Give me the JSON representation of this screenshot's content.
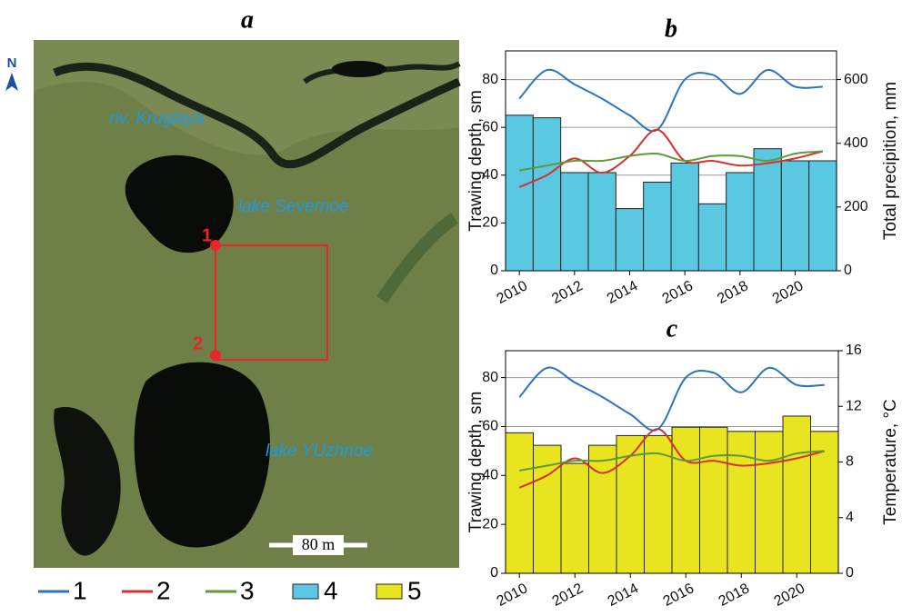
{
  "panel_a": {
    "title": "a",
    "north": "N",
    "labels": [
      "riv. Kruglaya",
      "lake Severnoe",
      "lake YUzhnoe"
    ],
    "points": [
      "1",
      "2"
    ],
    "scale": "80 m"
  },
  "chart_data": [
    {
      "type": "combo",
      "title": "b",
      "ylabel": "Trawing depth, sm",
      "y2label": "Total precipition, mm",
      "x": [
        2010,
        2011,
        2012,
        2013,
        2014,
        2015,
        2016,
        2017,
        2018,
        2019,
        2020,
        2021
      ],
      "xlim": [
        2009.5,
        2021.5
      ],
      "xticks": [
        2010,
        2012,
        2014,
        2016,
        2018,
        2020
      ],
      "ylim": [
        0,
        92
      ],
      "yticks": [
        0,
        20,
        40,
        60,
        80
      ],
      "y2lim": [
        0,
        690
      ],
      "y2ticks": [
        0,
        200,
        400,
        600
      ],
      "grid": true,
      "series": [
        {
          "name": "1",
          "kind": "line",
          "color": "#2b73c0",
          "values": [
            72,
            84,
            78,
            72,
            65,
            59,
            80,
            82,
            74,
            84,
            77,
            77
          ]
        },
        {
          "name": "2",
          "kind": "line",
          "color": "#d6312b",
          "values": [
            35,
            40,
            47,
            41,
            48,
            59,
            46,
            46,
            44,
            45,
            47,
            50
          ]
        },
        {
          "name": "3",
          "kind": "line",
          "color": "#5e9a3a",
          "values": [
            42,
            44,
            46,
            46,
            48,
            49,
            46,
            48,
            48,
            46,
            49,
            50
          ]
        },
        {
          "name": "4",
          "kind": "bar",
          "axis": "y2",
          "color": "#5bc8e2",
          "values": [
            488,
            480,
            308,
            308,
            195,
            278,
            338,
            210,
            308,
            383,
            345,
            345
          ]
        }
      ]
    },
    {
      "type": "combo",
      "title": "c",
      "ylabel": "Trawing depth, sm",
      "y2label": "Temperature, °C",
      "x": [
        2010,
        2011,
        2012,
        2013,
        2014,
        2015,
        2016,
        2017,
        2018,
        2019,
        2020,
        2021
      ],
      "xlim": [
        2009.5,
        2021.5
      ],
      "xticks": [
        2010,
        2012,
        2014,
        2016,
        2018,
        2020
      ],
      "ylim": [
        0,
        91
      ],
      "yticks": [
        0,
        20,
        40,
        60,
        80
      ],
      "y2lim": [
        0,
        16
      ],
      "y2ticks": [
        0,
        4,
        8,
        12,
        16
      ],
      "grid": true,
      "series": [
        {
          "kind": "line",
          "color": "#2b73c0",
          "values": [
            72,
            84,
            78,
            72,
            65,
            59,
            80,
            82,
            74,
            84,
            77,
            77
          ]
        },
        {
          "kind": "line",
          "color": "#d6312b",
          "values": [
            35,
            40,
            47,
            41,
            48,
            59,
            46,
            46,
            44,
            45,
            47,
            50
          ]
        },
        {
          "kind": "line",
          "color": "#5e9a3a",
          "values": [
            42,
            44,
            46,
            46,
            48,
            49,
            46,
            48,
            48,
            46,
            49,
            50
          ]
        },
        {
          "name": "5",
          "kind": "bar",
          "axis": "y2",
          "color": "#e8e41f",
          "values": [
            10.1,
            9.2,
            7.9,
            9.2,
            9.9,
            9.9,
            10.5,
            10.5,
            10.2,
            10.2,
            11.3,
            10.2
          ]
        }
      ]
    }
  ]
}
